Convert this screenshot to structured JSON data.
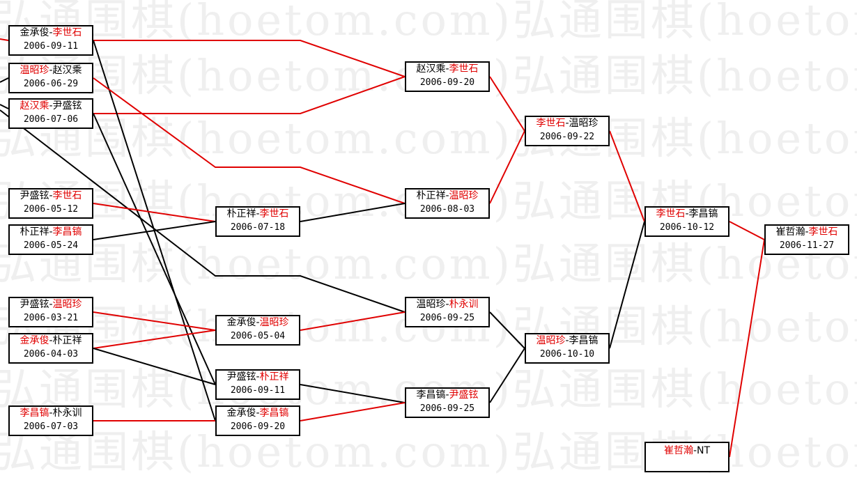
{
  "watermark": "弘通围棋(hoetom.com)弘通围棋(hoetom.com)",
  "colors": {
    "winner": "#e00000",
    "winner_line": "#e00000",
    "loser_line": "#000000"
  },
  "matches": [
    {
      "id": "A",
      "p1": "金承俊",
      "p2": "李世石",
      "winner": 2,
      "date": "2006-09-11"
    },
    {
      "id": "B",
      "p1": "温昭珍",
      "p2": "赵汉乘",
      "winner": 1,
      "date": "2006-06-29"
    },
    {
      "id": "C",
      "p1": "赵汉乘",
      "p2": "尹盛铉",
      "winner": 1,
      "date": "2006-07-06"
    },
    {
      "id": "D",
      "p1": "尹盛铉",
      "p2": "李世石",
      "winner": 2,
      "date": "2006-05-12"
    },
    {
      "id": "E",
      "p1": "朴正祥",
      "p2": "李昌镐",
      "winner": 2,
      "date": "2006-05-24"
    },
    {
      "id": "F",
      "p1": "尹盛铉",
      "p2": "温昭珍",
      "winner": 2,
      "date": "2006-03-21"
    },
    {
      "id": "G",
      "p1": "金承俊",
      "p2": "朴正祥",
      "winner": 1,
      "date": "2006-04-03"
    },
    {
      "id": "H",
      "p1": "李昌镐",
      "p2": "朴永训",
      "winner": 1,
      "date": "2006-07-03"
    },
    {
      "id": "I",
      "p1": "朴正祥",
      "p2": "李世石",
      "winner": 2,
      "date": "2006-07-18"
    },
    {
      "id": "J",
      "p1": "金承俊",
      "p2": "温昭珍",
      "winner": 2,
      "date": "2006-05-04"
    },
    {
      "id": "K",
      "p1": "尹盛铉",
      "p2": "朴正祥",
      "winner": 2,
      "date": "2006-09-11"
    },
    {
      "id": "L",
      "p1": "金承俊",
      "p2": "李昌镐",
      "winner": 2,
      "date": "2006-09-20"
    },
    {
      "id": "M",
      "p1": "赵汉乘",
      "p2": "李世石",
      "winner": 2,
      "date": "2006-09-20"
    },
    {
      "id": "N",
      "p1": "朴正祥",
      "p2": "温昭珍",
      "winner": 2,
      "date": "2006-08-03"
    },
    {
      "id": "O",
      "p1": "温昭珍",
      "p2": "朴永训",
      "winner": 2,
      "date": "2006-09-25"
    },
    {
      "id": "P",
      "p1": "李昌镐",
      "p2": "尹盛铉",
      "winner": 2,
      "date": "2006-09-25"
    },
    {
      "id": "Q",
      "p1": "李世石",
      "p2": "温昭珍",
      "winner": 1,
      "date": "2006-09-22"
    },
    {
      "id": "R",
      "p1": "温昭珍",
      "p2": "李昌镐",
      "winner": 1,
      "date": "2006-10-10"
    },
    {
      "id": "S",
      "p1": "李世石",
      "p2": "李昌镐",
      "winner": 1,
      "date": "2006-10-12"
    },
    {
      "id": "T",
      "p1": "崔哲瀚",
      "p2": "NT",
      "winner": 1,
      "date": ""
    },
    {
      "id": "U",
      "p1": "崔哲瀚",
      "p2": "李世石",
      "winner": 2,
      "date": "2006-11-27"
    }
  ]
}
